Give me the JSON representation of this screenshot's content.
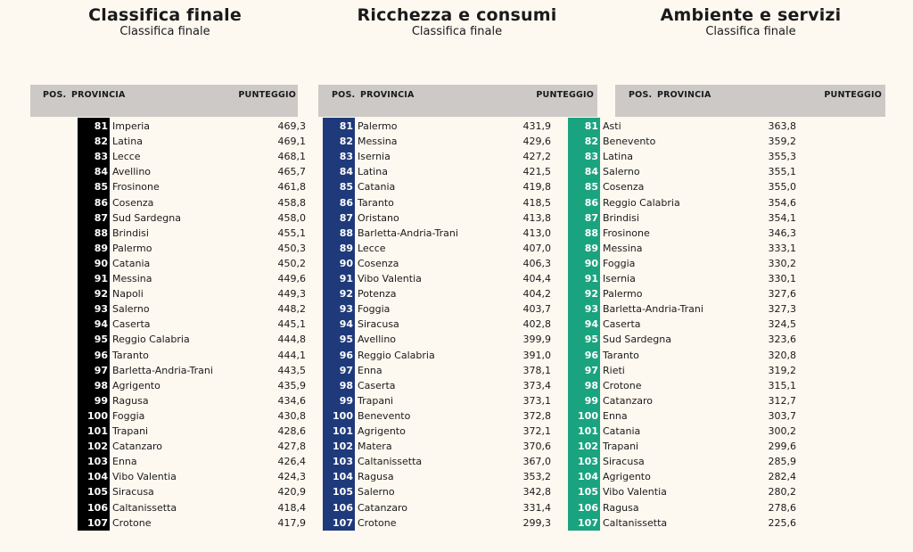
{
  "header_labels": {
    "pos": "POS.",
    "provincia": "PROVINCIA",
    "punteggio": "PUNTEGGIO"
  },
  "panels": [
    {
      "title": "Classifica finale",
      "subtitle": "Classifica finale",
      "accent": "#000000",
      "rows": [
        {
          "pos": "81",
          "name": "Imperia",
          "score": "469,3"
        },
        {
          "pos": "82",
          "name": "Latina",
          "score": "469,1"
        },
        {
          "pos": "83",
          "name": "Lecce",
          "score": "468,1"
        },
        {
          "pos": "84",
          "name": "Avellino",
          "score": "465,7"
        },
        {
          "pos": "85",
          "name": "Frosinone",
          "score": "461,8"
        },
        {
          "pos": "86",
          "name": "Cosenza",
          "score": "458,8"
        },
        {
          "pos": "87",
          "name": "Sud Sardegna",
          "score": "458,0"
        },
        {
          "pos": "88",
          "name": "Brindisi",
          "score": "455,1"
        },
        {
          "pos": "89",
          "name": "Palermo",
          "score": "450,3"
        },
        {
          "pos": "90",
          "name": "Catania",
          "score": "450,2"
        },
        {
          "pos": "91",
          "name": "Messina",
          "score": "449,6"
        },
        {
          "pos": "92",
          "name": "Napoli",
          "score": "449,3"
        },
        {
          "pos": "93",
          "name": "Salerno",
          "score": "448,2"
        },
        {
          "pos": "94",
          "name": "Caserta",
          "score": "445,1"
        },
        {
          "pos": "95",
          "name": "Reggio Calabria",
          "score": "444,8"
        },
        {
          "pos": "96",
          "name": "Taranto",
          "score": "444,1"
        },
        {
          "pos": "97",
          "name": "Barletta-Andria-Trani",
          "score": "443,5"
        },
        {
          "pos": "98",
          "name": "Agrigento",
          "score": "435,9"
        },
        {
          "pos": "99",
          "name": "Ragusa",
          "score": "434,6"
        },
        {
          "pos": "100",
          "name": "Foggia",
          "score": "430,8"
        },
        {
          "pos": "101",
          "name": "Trapani",
          "score": "428,6"
        },
        {
          "pos": "102",
          "name": "Catanzaro",
          "score": "427,8"
        },
        {
          "pos": "103",
          "name": "Enna",
          "score": "426,4"
        },
        {
          "pos": "104",
          "name": "Vibo Valentia",
          "score": "424,3"
        },
        {
          "pos": "105",
          "name": "Siracusa",
          "score": "420,9"
        },
        {
          "pos": "106",
          "name": "Caltanissetta",
          "score": "418,4"
        },
        {
          "pos": "107",
          "name": "Crotone",
          "score": "417,9"
        }
      ]
    },
    {
      "title": "Ricchezza e consumi",
      "subtitle": "Classifica finale",
      "accent": "#1f3a7a",
      "rows": [
        {
          "pos": "81",
          "name": "Palermo",
          "score": "431,9"
        },
        {
          "pos": "82",
          "name": "Messina",
          "score": "429,6"
        },
        {
          "pos": "83",
          "name": "Isernia",
          "score": "427,2"
        },
        {
          "pos": "84",
          "name": "Latina",
          "score": "421,5"
        },
        {
          "pos": "85",
          "name": "Catania",
          "score": "419,8"
        },
        {
          "pos": "86",
          "name": "Taranto",
          "score": "418,5"
        },
        {
          "pos": "87",
          "name": "Oristano",
          "score": "413,8"
        },
        {
          "pos": "88",
          "name": "Barletta-Andria-Trani",
          "score": "413,0"
        },
        {
          "pos": "89",
          "name": "Lecce",
          "score": "407,0"
        },
        {
          "pos": "90",
          "name": "Cosenza",
          "score": "406,3"
        },
        {
          "pos": "91",
          "name": "Vibo Valentia",
          "score": "404,4"
        },
        {
          "pos": "92",
          "name": "Potenza",
          "score": "404,2"
        },
        {
          "pos": "93",
          "name": "Foggia",
          "score": "403,7"
        },
        {
          "pos": "94",
          "name": "Siracusa",
          "score": "402,8"
        },
        {
          "pos": "95",
          "name": "Avellino",
          "score": "399,9"
        },
        {
          "pos": "96",
          "name": "Reggio Calabria",
          "score": "391,0"
        },
        {
          "pos": "97",
          "name": "Enna",
          "score": "378,1"
        },
        {
          "pos": "98",
          "name": "Caserta",
          "score": "373,4"
        },
        {
          "pos": "99",
          "name": "Trapani",
          "score": "373,1"
        },
        {
          "pos": "100",
          "name": "Benevento",
          "score": "372,8"
        },
        {
          "pos": "101",
          "name": "Agrigento",
          "score": "372,1"
        },
        {
          "pos": "102",
          "name": "Matera",
          "score": "370,6"
        },
        {
          "pos": "103",
          "name": "Caltanissetta",
          "score": "367,0"
        },
        {
          "pos": "104",
          "name": "Ragusa",
          "score": "353,2"
        },
        {
          "pos": "105",
          "name": "Salerno",
          "score": "342,8"
        },
        {
          "pos": "106",
          "name": "Catanzaro",
          "score": "331,4"
        },
        {
          "pos": "107",
          "name": "Crotone",
          "score": "299,3"
        }
      ]
    },
    {
      "title": "Ambiente e servizi",
      "subtitle": "Classifica finale",
      "accent": "#1aa37f",
      "rows": [
        {
          "pos": "81",
          "name": "Asti",
          "score": "363,8"
        },
        {
          "pos": "82",
          "name": "Benevento",
          "score": "359,2"
        },
        {
          "pos": "83",
          "name": "Latina",
          "score": "355,3"
        },
        {
          "pos": "84",
          "name": "Salerno",
          "score": "355,1"
        },
        {
          "pos": "85",
          "name": "Cosenza",
          "score": "355,0"
        },
        {
          "pos": "86",
          "name": "Reggio Calabria",
          "score": "354,6"
        },
        {
          "pos": "87",
          "name": "Brindisi",
          "score": "354,1"
        },
        {
          "pos": "88",
          "name": "Frosinone",
          "score": "346,3"
        },
        {
          "pos": "89",
          "name": "Messina",
          "score": "333,1"
        },
        {
          "pos": "90",
          "name": "Foggia",
          "score": "330,2"
        },
        {
          "pos": "91",
          "name": "Isernia",
          "score": "330,1"
        },
        {
          "pos": "92",
          "name": "Palermo",
          "score": "327,6"
        },
        {
          "pos": "93",
          "name": "Barletta-Andria-Trani",
          "score": "327,3"
        },
        {
          "pos": "94",
          "name": "Caserta",
          "score": "324,5"
        },
        {
          "pos": "95",
          "name": "Sud Sardegna",
          "score": "323,6"
        },
        {
          "pos": "96",
          "name": "Taranto",
          "score": "320,8"
        },
        {
          "pos": "97",
          "name": "Rieti",
          "score": "319,2"
        },
        {
          "pos": "98",
          "name": "Crotone",
          "score": "315,1"
        },
        {
          "pos": "99",
          "name": "Catanzaro",
          "score": "312,7"
        },
        {
          "pos": "100",
          "name": "Enna",
          "score": "303,7"
        },
        {
          "pos": "101",
          "name": "Catania",
          "score": "300,2"
        },
        {
          "pos": "102",
          "name": "Trapani",
          "score": "299,6"
        },
        {
          "pos": "103",
          "name": "Siracusa",
          "score": "285,9"
        },
        {
          "pos": "104",
          "name": "Agrigento",
          "score": "282,4"
        },
        {
          "pos": "105",
          "name": "Vibo Valentia",
          "score": "280,2"
        },
        {
          "pos": "106",
          "name": "Ragusa",
          "score": "278,6"
        },
        {
          "pos": "107",
          "name": "Caltanissetta",
          "score": "225,6"
        }
      ]
    }
  ]
}
